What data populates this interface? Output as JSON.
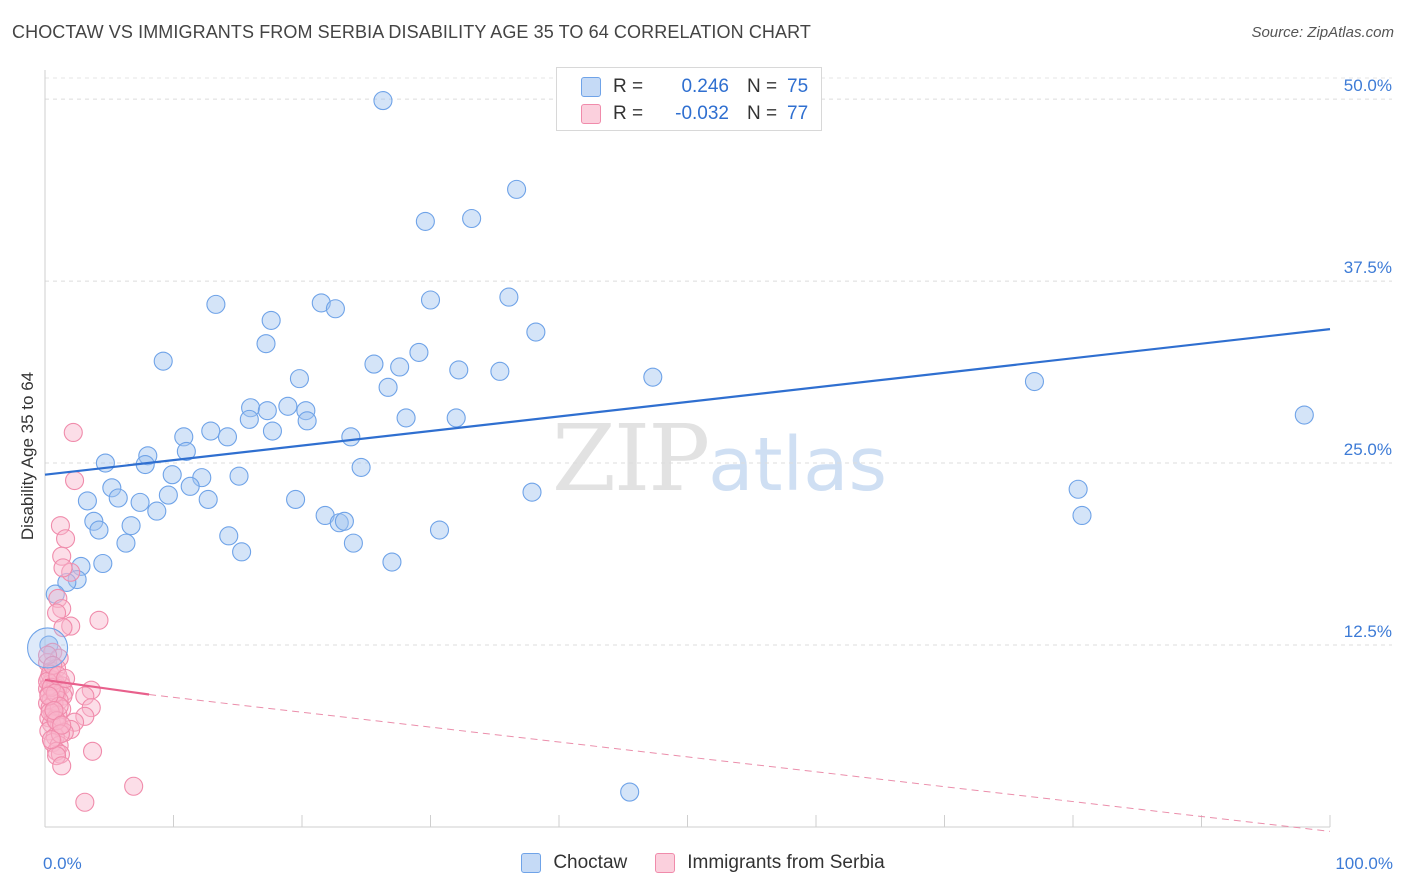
{
  "title": "CHOCTAW VS IMMIGRANTS FROM SERBIA DISABILITY AGE 35 TO 64 CORRELATION CHART",
  "source": "Source: ZipAtlas.com",
  "watermark": {
    "zip": "ZIP",
    "atlas": "atlas"
  },
  "legend": {
    "rows": [
      {
        "r_label": "R =",
        "r_value": "0.246",
        "n_label": "N =",
        "n_value": "75",
        "color": "#6fa3e8"
      },
      {
        "r_label": "R =",
        "r_value": "-0.032",
        "n_label": "N =",
        "n_value": "77",
        "color": "#f08bab"
      }
    ]
  },
  "bottom_legend": [
    {
      "label": "Choctaw",
      "color": "#6fa3e8"
    },
    {
      "label": "Immigrants from Serbia",
      "color": "#f08bab"
    }
  ],
  "chart_data": {
    "type": "scatter",
    "title": "CHOCTAW VS IMMIGRANTS FROM SERBIA DISABILITY AGE 35 TO 64 CORRELATION CHART",
    "xlabel": "",
    "ylabel": "Disability Age 35 to 64",
    "xlim": [
      0,
      100
    ],
    "ylim": [
      0,
      52
    ],
    "x_tick_labels": [
      "0.0%",
      "100.0%"
    ],
    "y_ticks": [
      12.5,
      25.0,
      37.5,
      50.0
    ],
    "y_tick_labels": [
      "12.5%",
      "25.0%",
      "37.5%",
      "50.0%"
    ],
    "series": [
      {
        "name": "Choctaw",
        "color": "#6fa3e8",
        "trend": {
          "x": [
            0,
            100
          ],
          "y": [
            24.2,
            34.2
          ],
          "style": "solid"
        },
        "points": [
          [
            26.3,
            49.9
          ],
          [
            36.7,
            43.8
          ],
          [
            29.6,
            41.6
          ],
          [
            33.2,
            41.8
          ],
          [
            13.3,
            35.9
          ],
          [
            21.5,
            36.0
          ],
          [
            22.6,
            35.6
          ],
          [
            30.0,
            36.2
          ],
          [
            36.1,
            36.4
          ],
          [
            17.6,
            34.8
          ],
          [
            17.2,
            33.2
          ],
          [
            38.2,
            34.0
          ],
          [
            29.1,
            32.6
          ],
          [
            9.2,
            32.0
          ],
          [
            25.6,
            31.8
          ],
          [
            27.6,
            31.6
          ],
          [
            32.2,
            31.4
          ],
          [
            35.4,
            31.3
          ],
          [
            47.3,
            30.9
          ],
          [
            19.8,
            30.8
          ],
          [
            26.7,
            30.2
          ],
          [
            77.0,
            30.6
          ],
          [
            98.0,
            28.3
          ],
          [
            16.0,
            28.8
          ],
          [
            17.3,
            28.6
          ],
          [
            18.9,
            28.9
          ],
          [
            20.3,
            28.6
          ],
          [
            15.9,
            28.0
          ],
          [
            20.4,
            27.9
          ],
          [
            28.1,
            28.1
          ],
          [
            32.0,
            28.1
          ],
          [
            12.9,
            27.2
          ],
          [
            17.7,
            27.2
          ],
          [
            10.8,
            26.8
          ],
          [
            14.2,
            26.8
          ],
          [
            23.8,
            26.8
          ],
          [
            11.0,
            25.8
          ],
          [
            8.0,
            25.5
          ],
          [
            4.7,
            25.0
          ],
          [
            7.8,
            24.9
          ],
          [
            24.6,
            24.7
          ],
          [
            9.9,
            24.2
          ],
          [
            12.2,
            24.0
          ],
          [
            15.1,
            24.1
          ],
          [
            11.3,
            23.4
          ],
          [
            5.2,
            23.3
          ],
          [
            37.9,
            23.0
          ],
          [
            80.4,
            23.2
          ],
          [
            9.6,
            22.8
          ],
          [
            3.3,
            22.4
          ],
          [
            5.7,
            22.6
          ],
          [
            7.4,
            22.3
          ],
          [
            12.7,
            22.5
          ],
          [
            19.5,
            22.5
          ],
          [
            8.7,
            21.7
          ],
          [
            21.8,
            21.4
          ],
          [
            22.9,
            20.9
          ],
          [
            23.3,
            21.0
          ],
          [
            80.7,
            21.4
          ],
          [
            3.8,
            21.0
          ],
          [
            6.7,
            20.7
          ],
          [
            4.2,
            20.4
          ],
          [
            30.7,
            20.4
          ],
          [
            14.3,
            20.0
          ],
          [
            6.3,
            19.5
          ],
          [
            24.0,
            19.5
          ],
          [
            15.3,
            18.9
          ],
          [
            27.0,
            18.2
          ],
          [
            4.5,
            18.1
          ],
          [
            2.8,
            17.9
          ],
          [
            2.5,
            17.0
          ],
          [
            1.7,
            16.8
          ],
          [
            0.8,
            16.0
          ],
          [
            0.3,
            12.5
          ],
          [
            45.5,
            2.4
          ]
        ]
      },
      {
        "name": "Immigrants from Serbia",
        "color": "#f08bab",
        "trend": {
          "x": [
            0,
            8.1
          ],
          "y": [
            10.1,
            9.1
          ],
          "style": "solid",
          "extension": {
            "x": [
              8.1,
              100
            ],
            "y": [
              9.1,
              -0.3
            ],
            "style": "dashed"
          }
        },
        "points": [
          [
            2.2,
            27.1
          ],
          [
            2.3,
            23.8
          ],
          [
            1.2,
            20.7
          ],
          [
            1.6,
            19.8
          ],
          [
            1.3,
            18.6
          ],
          [
            2.0,
            17.5
          ],
          [
            1.4,
            17.8
          ],
          [
            1.0,
            15.7
          ],
          [
            1.3,
            15.0
          ],
          [
            0.9,
            14.7
          ],
          [
            4.2,
            14.2
          ],
          [
            2.0,
            13.8
          ],
          [
            1.4,
            13.7
          ],
          [
            0.6,
            12.0
          ],
          [
            1.1,
            11.6
          ],
          [
            0.2,
            11.3
          ],
          [
            0.5,
            10.7
          ],
          [
            0.9,
            10.9
          ],
          [
            0.3,
            10.2
          ],
          [
            0.6,
            10.1
          ],
          [
            1.2,
            10.0
          ],
          [
            0.4,
            9.8
          ],
          [
            0.8,
            9.9
          ],
          [
            1.3,
            9.7
          ],
          [
            0.2,
            9.5
          ],
          [
            0.7,
            9.4
          ],
          [
            1.0,
            9.5
          ],
          [
            1.5,
            9.3
          ],
          [
            3.6,
            9.4
          ],
          [
            0.3,
            9.1
          ],
          [
            0.9,
            9.1
          ],
          [
            1.4,
            9.0
          ],
          [
            0.5,
            8.8
          ],
          [
            1.1,
            8.7
          ],
          [
            0.2,
            8.5
          ],
          [
            0.7,
            8.5
          ],
          [
            3.1,
            9.0
          ],
          [
            0.4,
            8.2
          ],
          [
            1.3,
            8.1
          ],
          [
            3.6,
            8.2
          ],
          [
            0.6,
            7.8
          ],
          [
            1.0,
            7.7
          ],
          [
            0.3,
            7.5
          ],
          [
            0.8,
            7.4
          ],
          [
            3.1,
            7.6
          ],
          [
            2.3,
            7.2
          ],
          [
            0.5,
            7.1
          ],
          [
            1.1,
            6.9
          ],
          [
            2.0,
            6.7
          ],
          [
            0.3,
            6.6
          ],
          [
            1.5,
            6.5
          ],
          [
            0.8,
            6.2
          ],
          [
            0.6,
            5.8
          ],
          [
            1.1,
            5.6
          ],
          [
            0.9,
            5.2
          ],
          [
            3.7,
            5.2
          ],
          [
            1.2,
            5.0
          ],
          [
            0.9,
            4.9
          ],
          [
            1.3,
            4.2
          ],
          [
            6.9,
            2.8
          ],
          [
            3.1,
            1.7
          ],
          [
            0.4,
            10.5
          ],
          [
            0.2,
            10.0
          ],
          [
            0.5,
            9.6
          ],
          [
            0.8,
            9.2
          ],
          [
            1.1,
            8.3
          ],
          [
            0.4,
            7.9
          ],
          [
            0.9,
            7.3
          ],
          [
            1.2,
            6.4
          ],
          [
            0.2,
            11.8
          ],
          [
            0.6,
            11.1
          ],
          [
            1.0,
            10.4
          ],
          [
            0.3,
            9.0
          ],
          [
            0.7,
            8.0
          ],
          [
            1.3,
            7.0
          ],
          [
            0.5,
            6.0
          ],
          [
            1.6,
            10.2
          ]
        ]
      }
    ]
  }
}
